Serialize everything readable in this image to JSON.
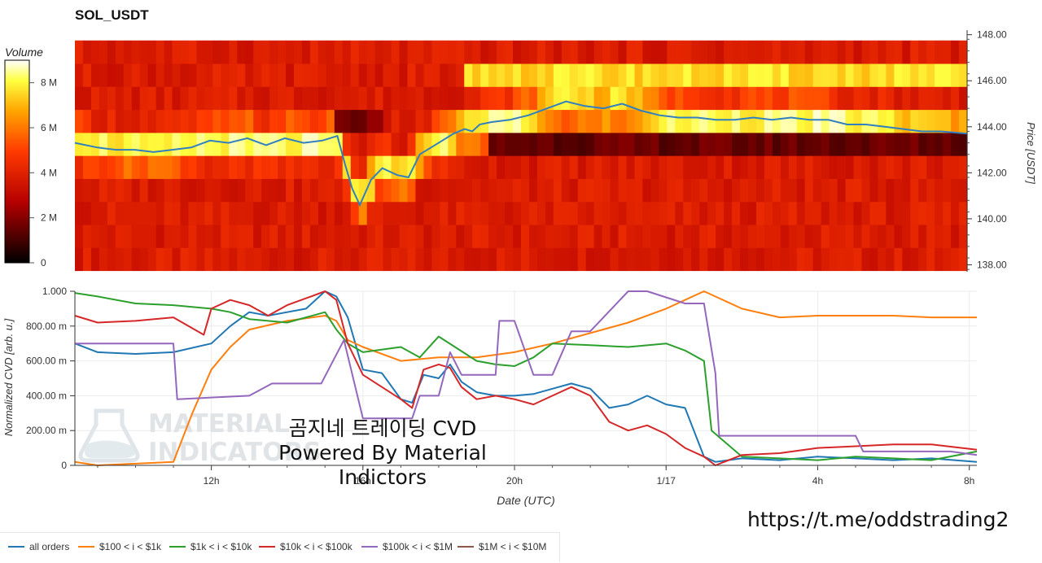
{
  "title": "SOL_USDT",
  "colorbar": {
    "title": "Volume",
    "ticks": [
      "8 M",
      "6 M",
      "4 M",
      "2 M",
      "0"
    ]
  },
  "heatmap": {
    "y_axis_label": "Price [USDT]",
    "y_ticks": [
      "148.00",
      "146.00",
      "144.00",
      "142.00",
      "140.00",
      "138.00"
    ]
  },
  "cvd": {
    "y_axis_label": "Normalized CVD [arb. u.]",
    "y_ticks": [
      "1.000",
      "800.00 m",
      "600.00 m",
      "400.00 m",
      "200.00 m",
      "0"
    ],
    "x_axis_label": "Date (UTC)",
    "x_ticks": [
      "12h",
      "16h",
      "20h",
      "1/17",
      "4h",
      "8h"
    ]
  },
  "watermark": [
    "MATERIAL",
    "INDICATORS"
  ],
  "overlay_text": {
    "line1": "곰지네 트레이딩 CVD",
    "line2": "Powered By Material Indictors"
  },
  "url": "https://t.me/oddstrading2",
  "legend": [
    {
      "label": "all orders",
      "color": "#1f77b4"
    },
    {
      "label": "$100 < i < $1k",
      "color": "#ff7f0e"
    },
    {
      "label": "$1k < i < $10k",
      "color": "#2ca02c"
    },
    {
      "label": "$10k < i < $100k",
      "color": "#d62728"
    },
    {
      "label": "$100k < i < $1M",
      "color": "#9467bd"
    },
    {
      "label": "$1M < i < $10M",
      "color": "#8c564b"
    }
  ],
  "chart_data": [
    {
      "type": "heatmap",
      "title": "SOL_USDT",
      "ylabel": "Price [USDT]",
      "ylim": [
        137.7,
        148.2
      ],
      "x_range_hours": [
        8.4,
        32.2
      ],
      "price_bins": [
        138.25,
        139.25,
        140.25,
        141.25,
        142.25,
        143.25,
        144.25,
        145.25,
        146.25,
        147.25
      ],
      "vmax_volume": 9000000,
      "price_line": {
        "name": "price",
        "x": [
          8.4,
          9.0,
          9.5,
          10.0,
          10.5,
          11.0,
          11.5,
          12.0,
          12.5,
          13.0,
          13.5,
          14.0,
          14.5,
          15.0,
          15.4,
          15.6,
          15.8,
          16.0,
          16.3,
          16.6,
          17.0,
          17.3,
          17.6,
          17.9,
          18.2,
          18.5,
          18.8,
          19.0,
          19.2,
          19.5,
          20.0,
          20.5,
          21.0,
          21.5,
          22.0,
          22.5,
          23.0,
          23.5,
          24.0,
          24.5,
          25.0,
          25.5,
          26.0,
          26.5,
          27.0,
          27.5,
          28.0,
          28.5,
          29.0,
          29.5,
          30.0,
          30.5,
          31.0,
          31.5,
          32.2
        ],
        "y": [
          143.3,
          143.1,
          143.0,
          143.0,
          142.9,
          143.0,
          143.1,
          143.4,
          143.3,
          143.5,
          143.2,
          143.5,
          143.3,
          143.4,
          143.6,
          142.4,
          141.3,
          140.6,
          141.7,
          142.2,
          141.9,
          141.8,
          142.8,
          143.1,
          143.4,
          143.7,
          143.9,
          143.8,
          144.1,
          144.2,
          144.3,
          144.5,
          144.8,
          145.1,
          144.9,
          144.8,
          145.0,
          144.7,
          144.5,
          144.4,
          144.4,
          144.3,
          144.3,
          144.4,
          144.3,
          144.4,
          144.3,
          144.3,
          144.1,
          144.1,
          144.0,
          143.9,
          143.8,
          143.8,
          143.7
        ]
      }
    },
    {
      "type": "line",
      "ylabel": "Normalized CVD [arb. u.]",
      "xlabel": "Date (UTC)",
      "ylim": [
        0,
        1
      ],
      "x_range_hours": [
        8.4,
        32.2
      ],
      "x_ticks": [
        {
          "label": "12h",
          "x": 12
        },
        {
          "label": "16h",
          "x": 16
        },
        {
          "label": "20h",
          "x": 20
        },
        {
          "label": "1/17",
          "x": 24
        },
        {
          "label": "4h",
          "x": 28
        },
        {
          "label": "8h",
          "x": 32
        }
      ],
      "series": [
        {
          "name": "all orders",
          "x": [
            8.4,
            9.0,
            10.0,
            11.0,
            12.0,
            12.5,
            13.0,
            13.5,
            14.0,
            14.5,
            15.0,
            15.3,
            15.6,
            16.0,
            16.5,
            17.0,
            17.3,
            17.6,
            18.0,
            18.3,
            18.6,
            19.0,
            19.5,
            20.0,
            20.5,
            21.0,
            21.5,
            22.0,
            22.5,
            23.0,
            23.5,
            24.0,
            24.5,
            25.0,
            25.3,
            26.0,
            27.0,
            28.0,
            29.0,
            30.0,
            31.0,
            32.2
          ],
          "y": [
            0.7,
            0.65,
            0.64,
            0.65,
            0.7,
            0.8,
            0.88,
            0.86,
            0.88,
            0.9,
            1.0,
            0.97,
            0.85,
            0.55,
            0.53,
            0.38,
            0.36,
            0.52,
            0.5,
            0.58,
            0.48,
            0.42,
            0.4,
            0.4,
            0.41,
            0.44,
            0.47,
            0.44,
            0.33,
            0.35,
            0.4,
            0.35,
            0.33,
            0.05,
            0.02,
            0.04,
            0.03,
            0.05,
            0.04,
            0.03,
            0.04,
            0.02
          ]
        },
        {
          "name": "$100 < i < $1k",
          "x": [
            8.4,
            9.0,
            10.0,
            11.0,
            11.5,
            12.0,
            12.5,
            13.0,
            14.0,
            15.0,
            15.3,
            15.6,
            16.0,
            17.0,
            18.0,
            19.0,
            20.0,
            21.0,
            22.0,
            23.0,
            24.0,
            24.5,
            25.0,
            26.0,
            27.0,
            28.0,
            29.0,
            30.0,
            31.0,
            32.2
          ],
          "y": [
            0.02,
            0.0,
            0.01,
            0.02,
            0.3,
            0.55,
            0.68,
            0.78,
            0.83,
            0.86,
            0.83,
            0.72,
            0.68,
            0.6,
            0.62,
            0.62,
            0.65,
            0.7,
            0.76,
            0.82,
            0.9,
            0.95,
            1.0,
            0.9,
            0.85,
            0.86,
            0.86,
            0.86,
            0.85,
            0.85
          ]
        },
        {
          "name": "$1k < i < $10k",
          "x": [
            8.4,
            9.0,
            10.0,
            11.0,
            12.0,
            12.5,
            13.0,
            14.0,
            15.0,
            15.3,
            15.6,
            16.0,
            17.0,
            17.5,
            18.0,
            18.5,
            19.0,
            19.5,
            20.0,
            20.5,
            21.0,
            22.0,
            23.0,
            24.0,
            24.5,
            25.0,
            25.2,
            26.0,
            27.0,
            28.0,
            29.0,
            30.0,
            31.0,
            32.2
          ],
          "y": [
            0.99,
            0.97,
            0.93,
            0.92,
            0.9,
            0.88,
            0.84,
            0.82,
            0.88,
            0.78,
            0.7,
            0.65,
            0.68,
            0.62,
            0.74,
            0.67,
            0.6,
            0.58,
            0.57,
            0.62,
            0.7,
            0.69,
            0.68,
            0.7,
            0.66,
            0.6,
            0.2,
            0.05,
            0.04,
            0.03,
            0.05,
            0.04,
            0.03,
            0.08
          ]
        },
        {
          "name": "$10k < i < $100k",
          "x": [
            8.4,
            9.0,
            10.0,
            11.0,
            11.8,
            12.0,
            12.5,
            13.0,
            13.5,
            14.0,
            14.5,
            15.0,
            15.3,
            15.6,
            16.0,
            16.5,
            17.0,
            17.3,
            17.6,
            18.0,
            18.3,
            18.6,
            19.0,
            19.5,
            20.0,
            20.5,
            21.0,
            21.5,
            22.0,
            22.5,
            23.0,
            23.5,
            24.0,
            24.5,
            25.0,
            25.3,
            26.0,
            27.0,
            28.0,
            29.0,
            30.0,
            31.0,
            32.2
          ],
          "y": [
            0.86,
            0.82,
            0.83,
            0.85,
            0.75,
            0.9,
            0.95,
            0.92,
            0.86,
            0.92,
            0.96,
            1.0,
            0.95,
            0.7,
            0.52,
            0.45,
            0.38,
            0.33,
            0.55,
            0.58,
            0.56,
            0.45,
            0.38,
            0.4,
            0.38,
            0.35,
            0.4,
            0.45,
            0.4,
            0.25,
            0.2,
            0.23,
            0.18,
            0.1,
            0.05,
            0.0,
            0.06,
            0.07,
            0.1,
            0.11,
            0.12,
            0.12,
            0.09
          ]
        },
        {
          "name": "$100k < i < $1M",
          "x": [
            8.4,
            11.0,
            11.1,
            13.0,
            13.6,
            14.9,
            15.5,
            16.0,
            16.1,
            17.3,
            17.5,
            18.0,
            18.3,
            18.6,
            19.0,
            19.5,
            19.6,
            20.0,
            20.5,
            21.0,
            21.5,
            22.0,
            23.0,
            23.5,
            24.5,
            25.0,
            25.3,
            25.4,
            27.0,
            29.0,
            29.2,
            30.0,
            31.0,
            31.5,
            32.2
          ],
          "y": [
            0.7,
            0.7,
            0.38,
            0.4,
            0.47,
            0.47,
            0.72,
            0.27,
            0.27,
            0.27,
            0.4,
            0.4,
            0.65,
            0.52,
            0.52,
            0.52,
            0.83,
            0.83,
            0.52,
            0.52,
            0.77,
            0.77,
            1.0,
            1.0,
            0.93,
            0.93,
            0.53,
            0.17,
            0.17,
            0.17,
            0.08,
            0.08,
            0.08,
            0.08,
            0.06
          ]
        },
        {
          "name": "$1M < i < $10M",
          "x": [],
          "y": []
        }
      ]
    }
  ]
}
